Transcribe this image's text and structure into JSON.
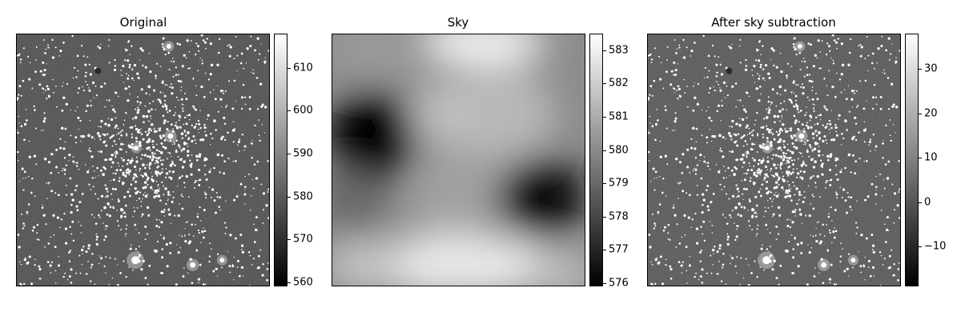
{
  "figure": {
    "panels": [
      {
        "title": "Original",
        "colorbar": {
          "min": 559,
          "max": 618,
          "ticks": [
            {
              "value": 560,
              "label": "560"
            },
            {
              "value": 570,
              "label": "570"
            },
            {
              "value": 580,
              "label": "580"
            },
            {
              "value": 590,
              "label": "590"
            },
            {
              "value": 600,
              "label": "600"
            },
            {
              "value": 610,
              "label": "610"
            }
          ]
        }
      },
      {
        "title": "Sky",
        "colorbar": {
          "min": 575.9,
          "max": 583.5,
          "ticks": [
            {
              "value": 576,
              "label": "576"
            },
            {
              "value": 577,
              "label": "577"
            },
            {
              "value": 578,
              "label": "578"
            },
            {
              "value": 579,
              "label": "579"
            },
            {
              "value": 580,
              "label": "580"
            },
            {
              "value": 581,
              "label": "581"
            },
            {
              "value": 582,
              "label": "582"
            },
            {
              "value": 583,
              "label": "583"
            }
          ]
        }
      },
      {
        "title": "After sky subtraction",
        "colorbar": {
          "min": -19,
          "max": 38,
          "ticks": [
            {
              "value": -10,
              "label": "−10"
            },
            {
              "value": 0,
              "label": "0"
            },
            {
              "value": 10,
              "label": "10"
            },
            {
              "value": 20,
              "label": "20"
            },
            {
              "value": 30,
              "label": "30"
            }
          ]
        }
      }
    ],
    "colormap": "gray",
    "colors": {
      "min": "#000000",
      "max": "#ffffff"
    }
  }
}
